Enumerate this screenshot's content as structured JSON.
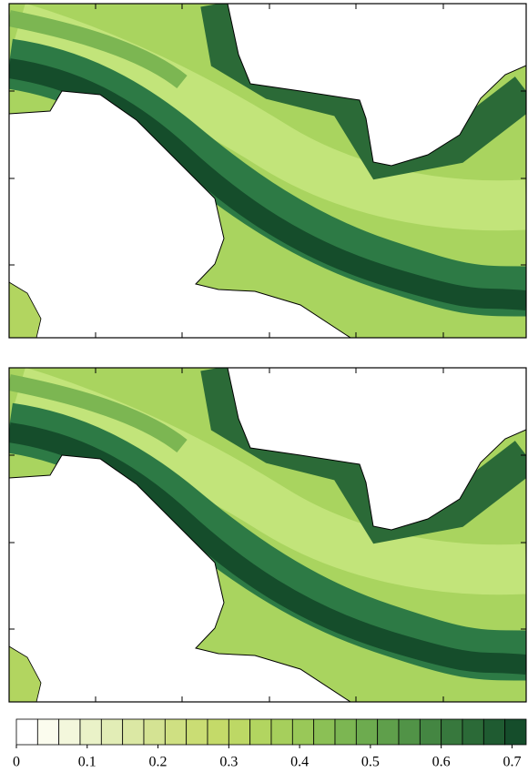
{
  "chart_data": {
    "type": "contour",
    "colorbar": {
      "lim": [
        0,
        0.72
      ],
      "ticks": [
        0,
        0.1,
        0.2,
        0.3,
        0.4,
        0.5,
        0.6,
        0.7
      ],
      "levels": [
        0,
        0.03,
        0.06,
        0.09,
        0.12,
        0.15,
        0.18,
        0.21,
        0.24,
        0.27,
        0.3,
        0.33,
        0.36,
        0.39,
        0.42,
        0.45,
        0.48,
        0.51,
        0.54,
        0.57,
        0.6,
        0.63,
        0.66,
        0.69
      ],
      "colors": [
        "#ffffff",
        "#fbfcee",
        "#f3f7dc",
        "#eaf2c8",
        "#e2edb6",
        "#dbe8a4",
        "#d4e393",
        "#cfe082",
        "#cadd74",
        "#c4da69",
        "#bdd865",
        "#b2d560",
        "#a6cf5c",
        "#99c858",
        "#8bc055",
        "#7cb652",
        "#6dab4f",
        "#5f9f4b",
        "#519347",
        "#448642",
        "#37783d",
        "#2b6a37",
        "#1f5b31",
        "#154d2b"
      ]
    }
  }
}
